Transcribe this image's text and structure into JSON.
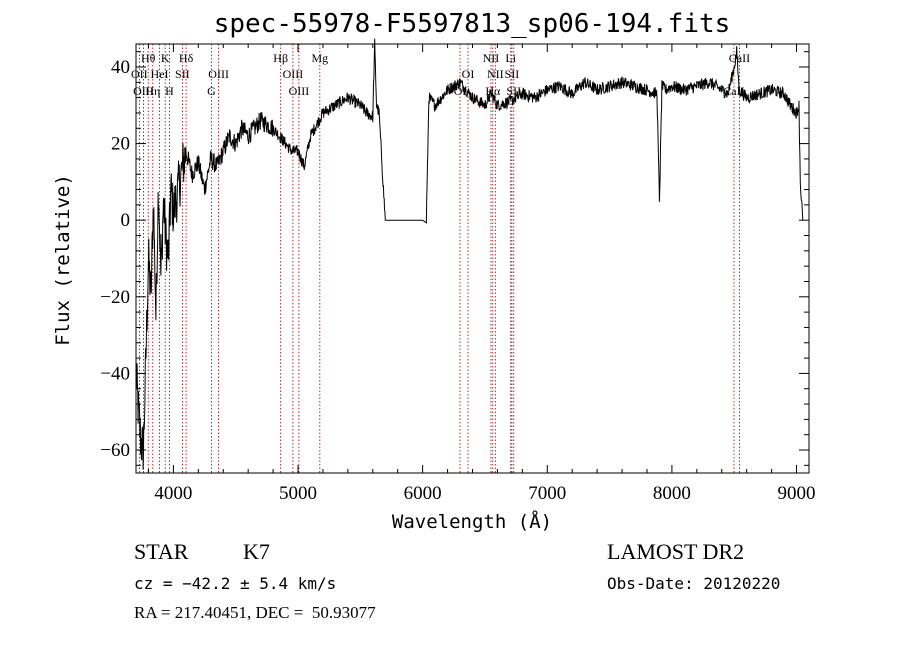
{
  "chart_data": {
    "type": "line",
    "title": "spec-55978-F5597813_sp06-194.fits",
    "xlabel": "Wavelength (Å)",
    "ylabel": "Flux (relative)",
    "xlim": [
      3700,
      9100
    ],
    "ylim": [
      -66,
      46
    ],
    "x_ticks": [
      4000,
      5000,
      6000,
      7000,
      8000,
      9000
    ],
    "y_ticks": [
      -60,
      -40,
      -20,
      0,
      20,
      40
    ],
    "line_color": "#000000",
    "marker_color": "#8b0000",
    "spectrum": {
      "x": [
        3700,
        3720,
        3740,
        3760,
        3780,
        3800,
        3820,
        3840,
        3860,
        3880,
        3900,
        3920,
        3940,
        3960,
        3980,
        4000,
        4050,
        4100,
        4150,
        4200,
        4250,
        4300,
        4350,
        4400,
        4450,
        4500,
        4550,
        4600,
        4700,
        4800,
        4850,
        4900,
        4950,
        5000,
        5050,
        5100,
        5200,
        5300,
        5400,
        5500,
        5550,
        5600,
        5615,
        5630,
        5650,
        5700,
        5800,
        5900,
        6000,
        6030,
        6050,
        6100,
        6200,
        6300,
        6400,
        6500,
        6550,
        6600,
        6700,
        6800,
        6900,
        7000,
        7100,
        7200,
        7300,
        7400,
        7500,
        7600,
        7700,
        7800,
        7880,
        7900,
        7920,
        7950,
        8000,
        8100,
        8200,
        8300,
        8400,
        8450,
        8500,
        8520,
        8540,
        8600,
        8700,
        8800,
        8900,
        8950,
        9000,
        9020,
        9030,
        9050
      ],
      "y": [
        -40,
        -50,
        -58,
        -60,
        -35,
        -10,
        -20,
        5,
        -25,
        10,
        -15,
        5,
        -5,
        -10,
        8,
        2,
        10,
        18,
        12,
        15,
        8,
        16,
        14,
        18,
        22,
        20,
        24,
        22,
        26,
        24,
        22,
        20,
        18,
        18,
        14,
        22,
        28,
        30,
        32,
        30,
        28,
        27,
        46,
        30,
        28,
        0,
        0,
        0,
        0,
        0,
        32,
        30,
        34,
        36,
        32,
        30,
        33,
        30,
        31,
        33,
        32,
        34,
        35,
        33,
        36,
        34,
        35,
        36,
        35,
        34,
        33,
        5,
        35,
        34,
        35,
        34,
        35,
        36,
        34,
        33,
        40,
        44,
        34,
        32,
        33,
        34,
        33,
        30,
        28,
        30,
        10,
        0
      ]
    },
    "lines": [
      {
        "label": "Hθ",
        "x": 3798,
        "row": 0
      },
      {
        "label": "OII",
        "x": 3727,
        "row": 1
      },
      {
        "label": "OIII",
        "x": 3760,
        "row": 2
      },
      {
        "label": "K",
        "x": 3934,
        "row": 0
      },
      {
        "label": "HeI",
        "x": 3889,
        "row": 1
      },
      {
        "label": "Hη",
        "x": 3835,
        "row": 2
      },
      {
        "label": "SII",
        "x": 4072,
        "row": 1
      },
      {
        "label": "H",
        "x": 3968,
        "row": 2
      },
      {
        "label": "Hδ",
        "x": 4102,
        "row": 0
      },
      {
        "label": "OIII",
        "x": 4363,
        "row": 1
      },
      {
        "label": "G",
        "x": 4305,
        "row": 2
      },
      {
        "label": "Hβ",
        "x": 4861,
        "row": 0
      },
      {
        "label": "OIII",
        "x": 4959,
        "row": 1
      },
      {
        "label": "OIII",
        "x": 5007,
        "row": 2
      },
      {
        "label": "Mg",
        "x": 5175,
        "row": 0
      },
      {
        "label": "OI",
        "x": 6364,
        "row": 1
      },
      {
        "label": "OI",
        "x": 6300,
        "row": 2
      },
      {
        "label": "NII",
        "x": 6548,
        "row": 0
      },
      {
        "label": "NII",
        "x": 6583,
        "row": 1
      },
      {
        "label": "Hα",
        "x": 6563,
        "row": 2
      },
      {
        "label": "Li",
        "x": 6707,
        "row": 0
      },
      {
        "label": "SII",
        "x": 6716,
        "row": 1
      },
      {
        "label": "SII",
        "x": 6731,
        "row": 2
      },
      {
        "label": "CaII",
        "x": 8542,
        "row": 0
      },
      {
        "label": "CaII",
        "x": 8498,
        "row": 2
      }
    ]
  },
  "info": {
    "object_class": "STAR",
    "subclass": "K7",
    "survey": "LAMOST DR2",
    "cz": "cz = −42.2 ± 5.4 km/s",
    "obs_date": "Obs-Date: 20120220",
    "coords": "RA = 217.40451, DEC =  50.93077"
  }
}
